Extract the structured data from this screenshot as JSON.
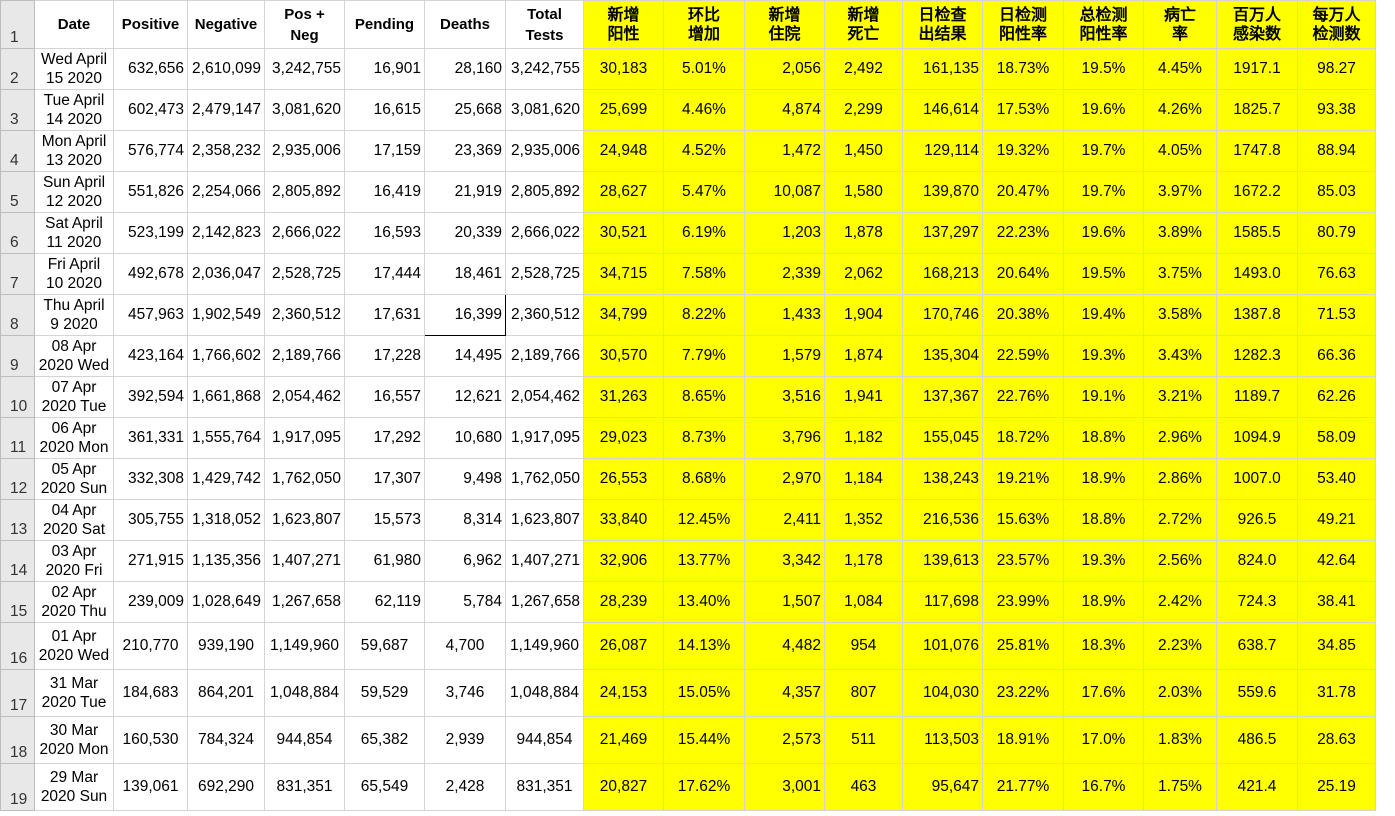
{
  "sheet": {
    "headers": [
      "Date",
      "Positive",
      "Negative",
      "Pos + Neg",
      "Pending",
      "Deaths",
      "Total Tests",
      "新增阳性",
      "环比增加",
      "新增住院",
      "新增死亡",
      "日检查出结果",
      "日检测阳性率",
      "总检测阳性率",
      "病亡率",
      "百万人感染数",
      "每万人检测数"
    ],
    "header_row_number": "1",
    "accent_color": "#ffff00",
    "rows": [
      {
        "n": "2",
        "cells": [
          "Wed April 15 2020",
          "632,656",
          "2,610,099",
          "3,242,755",
          "16,901",
          "28,160",
          "3,242,755",
          "30,183",
          "5.01%",
          "2,056",
          "2,492",
          "161,135",
          "18.73%",
          "19.5%",
          "4.45%",
          "1917.1",
          "98.27"
        ]
      },
      {
        "n": "3",
        "cells": [
          "Tue April 14 2020",
          "602,473",
          "2,479,147",
          "3,081,620",
          "16,615",
          "25,668",
          "3,081,620",
          "25,699",
          "4.46%",
          "4,874",
          "2,299",
          "146,614",
          "17.53%",
          "19.6%",
          "4.26%",
          "1825.7",
          "93.38"
        ]
      },
      {
        "n": "4",
        "cells": [
          "Mon April 13 2020",
          "576,774",
          "2,358,232",
          "2,935,006",
          "17,159",
          "23,369",
          "2,935,006",
          "24,948",
          "4.52%",
          "1,472",
          "1,450",
          "129,114",
          "19.32%",
          "19.7%",
          "4.05%",
          "1747.8",
          "88.94"
        ]
      },
      {
        "n": "5",
        "cells": [
          "Sun April 12 2020",
          "551,826",
          "2,254,066",
          "2,805,892",
          "16,419",
          "21,919",
          "2,805,892",
          "28,627",
          "5.47%",
          "10,087",
          "1,580",
          "139,870",
          "20.47%",
          "19.7%",
          "3.97%",
          "1672.2",
          "85.03"
        ]
      },
      {
        "n": "6",
        "cells": [
          "Sat April 11 2020",
          "523,199",
          "2,142,823",
          "2,666,022",
          "16,593",
          "20,339",
          "2,666,022",
          "30,521",
          "6.19%",
          "1,203",
          "1,878",
          "137,297",
          "22.23%",
          "19.6%",
          "3.89%",
          "1585.5",
          "80.79"
        ]
      },
      {
        "n": "7",
        "cells": [
          "Fri April 10 2020",
          "492,678",
          "2,036,047",
          "2,528,725",
          "17,444",
          "18,461",
          "2,528,725",
          "34,715",
          "7.58%",
          "2,339",
          "2,062",
          "168,213",
          "20.64%",
          "19.5%",
          "3.75%",
          "1493.0",
          "76.63"
        ]
      },
      {
        "n": "8",
        "cells": [
          "Thu April 9 2020",
          "457,963",
          "1,902,549",
          "2,360,512",
          "17,631",
          "16,399",
          "2,360,512",
          "34,799",
          "8.22%",
          "1,433",
          "1,904",
          "170,746",
          "20.38%",
          "19.4%",
          "3.58%",
          "1387.8",
          "71.53"
        ]
      },
      {
        "n": "9",
        "cells": [
          "08 Apr 2020 Wed",
          "423,164",
          "1,766,602",
          "2,189,766",
          "17,228",
          "14,495",
          "2,189,766",
          "30,570",
          "7.79%",
          "1,579",
          "1,874",
          "135,304",
          "22.59%",
          "19.3%",
          "3.43%",
          "1282.3",
          "66.36"
        ]
      },
      {
        "n": "10",
        "cells": [
          "07 Apr 2020 Tue",
          "392,594",
          "1,661,868",
          "2,054,462",
          "16,557",
          "12,621",
          "2,054,462",
          "31,263",
          "8.65%",
          "3,516",
          "1,941",
          "137,367",
          "22.76%",
          "19.1%",
          "3.21%",
          "1189.7",
          "62.26"
        ]
      },
      {
        "n": "11",
        "cells": [
          "06 Apr 2020 Mon",
          "361,331",
          "1,555,764",
          "1,917,095",
          "17,292",
          "10,680",
          "1,917,095",
          "29,023",
          "8.73%",
          "3,796",
          "1,182",
          "155,045",
          "18.72%",
          "18.8%",
          "2.96%",
          "1094.9",
          "58.09"
        ]
      },
      {
        "n": "12",
        "cells": [
          "05 Apr 2020 Sun",
          "332,308",
          "1,429,742",
          "1,762,050",
          "17,307",
          "9,498",
          "1,762,050",
          "26,553",
          "8.68%",
          "2,970",
          "1,184",
          "138,243",
          "19.21%",
          "18.9%",
          "2.86%",
          "1007.0",
          "53.40"
        ]
      },
      {
        "n": "13",
        "cells": [
          "04 Apr 2020 Sat",
          "305,755",
          "1,318,052",
          "1,623,807",
          "15,573",
          "8,314",
          "1,623,807",
          "33,840",
          "12.45%",
          "2,411",
          "1,352",
          "216,536",
          "15.63%",
          "18.8%",
          "2.72%",
          "926.5",
          "49.21"
        ]
      },
      {
        "n": "14",
        "cells": [
          "03 Apr 2020 Fri",
          "271,915",
          "1,135,356",
          "1,407,271",
          "61,980",
          "6,962",
          "1,407,271",
          "32,906",
          "13.77%",
          "3,342",
          "1,178",
          "139,613",
          "23.57%",
          "19.3%",
          "2.56%",
          "824.0",
          "42.64"
        ]
      },
      {
        "n": "15",
        "cells": [
          "02 Apr 2020 Thu",
          "239,009",
          "1,028,649",
          "1,267,658",
          "62,119",
          "5,784",
          "1,267,658",
          "28,239",
          "13.40%",
          "1,507",
          "1,084",
          "117,698",
          "23.99%",
          "18.9%",
          "2.42%",
          "724.3",
          "38.41"
        ]
      },
      {
        "n": "16",
        "cells": [
          "01 Apr 2020 Wed",
          "210,770",
          "939,190",
          "1,149,960",
          "59,687",
          "4,700",
          "1,149,960",
          "26,087",
          "14.13%",
          "4,482",
          "954",
          "101,076",
          "25.81%",
          "18.3%",
          "2.23%",
          "638.7",
          "34.85"
        ]
      },
      {
        "n": "17",
        "cells": [
          "31 Mar 2020 Tue",
          "184,683",
          "864,201",
          "1,048,884",
          "59,529",
          "3,746",
          "1,048,884",
          "24,153",
          "15.05%",
          "4,357",
          "807",
          "104,030",
          "23.22%",
          "17.6%",
          "2.03%",
          "559.6",
          "31.78"
        ]
      },
      {
        "n": "18",
        "cells": [
          "30 Mar 2020 Mon",
          "160,530",
          "784,324",
          "944,854",
          "65,382",
          "2,939",
          "944,854",
          "21,469",
          "15.44%",
          "2,573",
          "511",
          "113,503",
          "18.91%",
          "17.0%",
          "1.83%",
          "486.5",
          "28.63"
        ]
      },
      {
        "n": "19",
        "cells": [
          "29 Mar 2020 Sun",
          "139,061",
          "692,290",
          "831,351",
          "65,549",
          "2,428",
          "831,351",
          "20,827",
          "17.62%",
          "3,001",
          "463",
          "95,647",
          "21.77%",
          "16.7%",
          "1.75%",
          "421.4",
          "25.19"
        ]
      }
    ]
  }
}
